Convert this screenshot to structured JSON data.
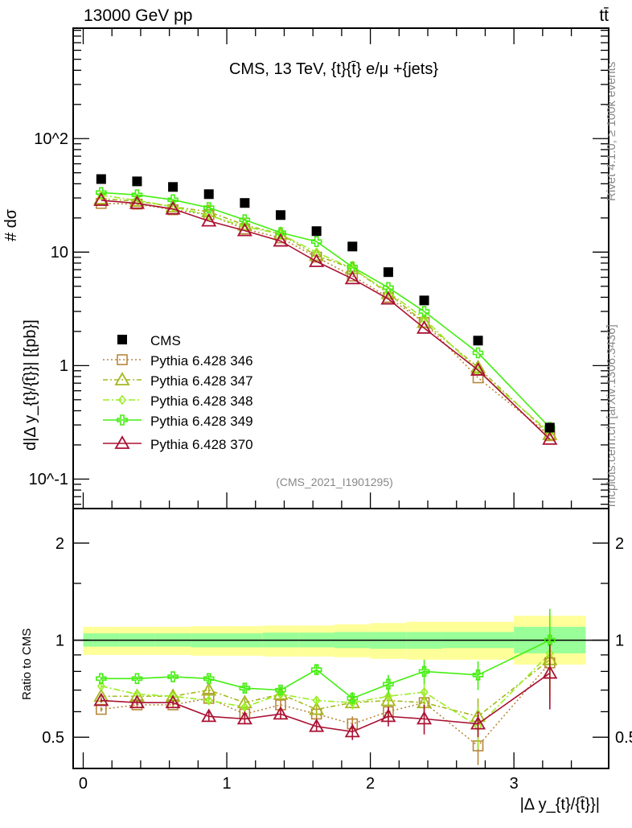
{
  "header": {
    "left": "13000 GeV pp",
    "right": "tt̄"
  },
  "side_text": {
    "rivet": "Rivet 4.1.0, ≥ 100k events",
    "mcplots": "mcplots.cern.ch [arXiv:1306.3436]"
  },
  "chart_data": {
    "type": "line",
    "title": "CMS, 13 TeV, {t}{t̄} e/μ +{jets}",
    "watermark": "(CMS_2021_I1901295)",
    "xlabel": "|Δ y_{t}/{t̄}}|",
    "ylabel_top": "# dσ",
    "ylabel_bottom": "d|Δ y_{t}/{t̄}}| [{pb}]",
    "ratio_ylabel": "Ratio to CMS",
    "xlim": [
      -0.07,
      3.66
    ],
    "ylim": [
      0.055,
      940
    ],
    "yscale": "log",
    "ratio_ylim": [
      0.4,
      2.56
    ],
    "ratio_yscale": "log2",
    "legend_position": "left-middle",
    "x_ticks": [
      "0",
      "1",
      "2",
      "3"
    ],
    "y_ticks": [
      "10^-1",
      "1",
      "10",
      "10^2"
    ],
    "ratio_ticks": [
      "0.5",
      "1",
      "2"
    ],
    "bin_edges": [
      0,
      0.25,
      0.5,
      0.75,
      1.0,
      1.25,
      1.5,
      1.75,
      2.0,
      2.25,
      2.5,
      3.0,
      3.5
    ],
    "x": [
      0.125,
      0.375,
      0.625,
      0.875,
      1.125,
      1.375,
      1.625,
      1.875,
      2.125,
      2.375,
      2.75,
      3.25
    ],
    "data": {
      "name": "CMS",
      "values": [
        44,
        42,
        37.5,
        32.4,
        27.1,
        21.2,
        15.3,
        11.2,
        6.66,
        3.75,
        1.66,
        0.284
      ],
      "band_outer_low": [
        0.9,
        0.9,
        0.9,
        0.895,
        0.895,
        0.89,
        0.89,
        0.885,
        0.875,
        0.87,
        0.87,
        0.84
      ],
      "band_outer_high": [
        1.1,
        1.1,
        1.1,
        1.105,
        1.105,
        1.11,
        1.11,
        1.12,
        1.13,
        1.14,
        1.14,
        1.19
      ],
      "band_inner_low": [
        0.955,
        0.955,
        0.955,
        0.95,
        0.95,
        0.95,
        0.95,
        0.945,
        0.94,
        0.94,
        0.945,
        0.91
      ],
      "band_inner_high": [
        1.05,
        1.05,
        1.05,
        1.05,
        1.05,
        1.055,
        1.055,
        1.06,
        1.06,
        1.06,
        1.06,
        1.1
      ]
    },
    "series": [
      {
        "name": "Pythia 6.428 346",
        "color": "#b8873a",
        "dash": "2,3",
        "marker": "square",
        "ratio": [
          0.61,
          0.63,
          0.63,
          0.66,
          0.59,
          0.63,
          0.59,
          0.55,
          0.6,
          0.64,
          0.47,
          0.85
        ],
        "ratio_err": [
          0.01,
          0.01,
          0.01,
          0.02,
          0.02,
          0.02,
          0.02,
          0.03,
          0.03,
          0.05,
          0.08,
          0.2
        ]
      },
      {
        "name": "Pythia 6.428 347",
        "color": "#a6b81e",
        "dash": "6,3,2,3",
        "marker": "triangle",
        "ratio": [
          0.67,
          0.67,
          0.67,
          0.7,
          0.64,
          0.68,
          0.61,
          0.64,
          0.65,
          0.64,
          0.58,
          0.87
        ],
        "ratio_err": [
          0.01,
          0.01,
          0.01,
          0.02,
          0.02,
          0.02,
          0.02,
          0.03,
          0.03,
          0.05,
          0.08,
          0.2
        ]
      },
      {
        "name": "Pythia 6.428 348",
        "color": "#99ee22",
        "dash": "8,3,2,3",
        "marker": "diamond",
        "ratio": [
          0.72,
          0.68,
          0.67,
          0.65,
          0.62,
          0.68,
          0.65,
          0.64,
          0.67,
          0.69,
          0.54,
          0.91
        ],
        "ratio_err": [
          0.01,
          0.01,
          0.01,
          0.02,
          0.02,
          0.02,
          0.02,
          0.03,
          0.03,
          0.05,
          0.08,
          0.2
        ]
      },
      {
        "name": "Pythia 6.428 349",
        "color": "#44ee11",
        "dash": "",
        "marker": "cross",
        "ratio": [
          0.76,
          0.76,
          0.77,
          0.76,
          0.71,
          0.7,
          0.81,
          0.66,
          0.73,
          0.8,
          0.78,
          1.0
        ],
        "ratio_err": [
          0.01,
          0.01,
          0.01,
          0.02,
          0.02,
          0.02,
          0.03,
          0.03,
          0.05,
          0.07,
          0.08,
          0.25
        ]
      },
      {
        "name": "Pythia 6.428 370",
        "color": "#aa1133",
        "dash": "",
        "marker": "triangle",
        "ratio": [
          0.65,
          0.64,
          0.64,
          0.58,
          0.57,
          0.59,
          0.54,
          0.52,
          0.58,
          0.57,
          0.55,
          0.79
        ],
        "ratio_err": [
          0.01,
          0.01,
          0.01,
          0.02,
          0.02,
          0.02,
          0.02,
          0.03,
          0.04,
          0.06,
          0.05,
          0.18
        ]
      }
    ]
  }
}
